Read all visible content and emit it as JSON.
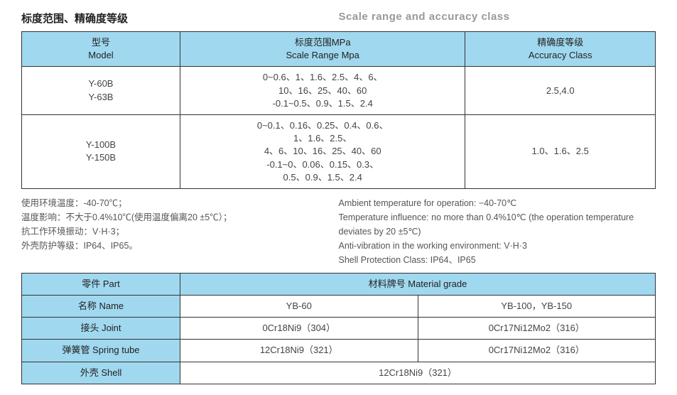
{
  "header": {
    "title_cn": "标度范围、精确度等级",
    "title_en": "Scale range and accuracy class"
  },
  "table1": {
    "headers": {
      "model_cn": "型号",
      "model_en": "Model",
      "range_cn": "标度范围MPa",
      "range_en": "Scale Range Mpa",
      "accuracy_cn": "精确度等级",
      "accuracy_en": "Accuracy Class"
    },
    "rows": [
      {
        "model": "Y-60B\nY-63B",
        "range": "0~0.6、1、1.6、2.5、4、6、\n10、16、25、40、60\n-0.1~0.5、0.9、1.5、2.4",
        "accuracy": "2.5,4.0"
      },
      {
        "model": "Y-100B\nY-150B",
        "range": "0~0.1、0.16、0.25、0.4、0.6、\n1、1.6、2.5、\n4、6、10、16、25、40、60\n-0.1~0、0.06、0.15、0.3、\n0.5、0.9、1.5、2.4",
        "accuracy": "1.0、1.6、2.5"
      }
    ]
  },
  "notes_cn": [
    "使用环境温度：-40-70℃；",
    "温度影响：不大于0.4%10℃(使用温度偏离20 ±5℃）；",
    "抗工作环境振动：V·H·3；",
    "外壳防护等级：IP64、IP65。"
  ],
  "notes_en": [
    "Ambient temperature for operation: −40-70℃",
    "Temperature influence: no more than 0.4%10℃ (the operation temperature deviates by 20 ±5℃)",
    "Anti-vibration in the working environment: V·H·3",
    "Shell Protection Class: IP64、IP65"
  ],
  "table2": {
    "headers": {
      "part": "零件 Part",
      "material": "材料牌号 Material grade",
      "name": "名称 Name",
      "yb60": "YB-60",
      "yb100": "YB-100，YB-150"
    },
    "rows": [
      {
        "part": "接头 Joint",
        "yb60": "0Cr18Ni9（304）",
        "yb100": "0Cr17Ni12Mo2（316）"
      },
      {
        "part": "弹簧管 Spring tube",
        "yb60": "12Cr18Ni9（321）",
        "yb100": "0Cr17Ni12Mo2（316）"
      },
      {
        "part": "外壳 Shell",
        "shell_all": "12Cr18Ni9（321）"
      }
    ]
  }
}
